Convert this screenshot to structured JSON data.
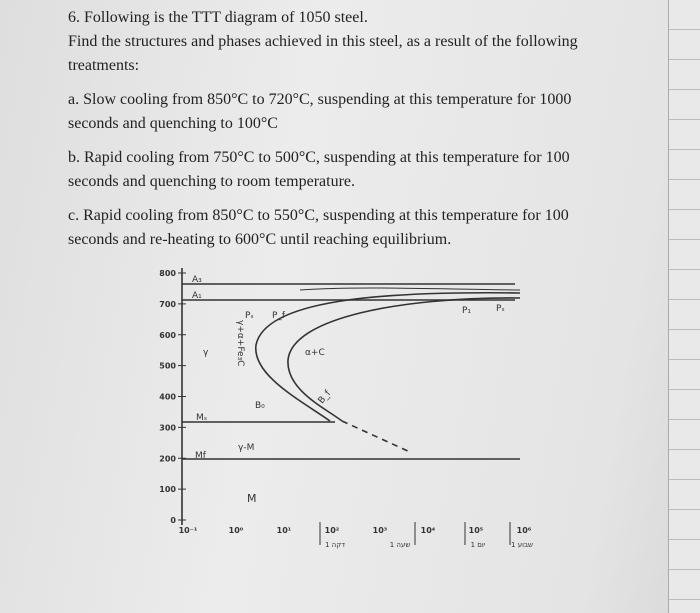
{
  "question": {
    "title": "6. Following is the TTT diagram of 1050 steel.",
    "intro": "Find the structures and phases achieved in this steel, as a result of the following treatments:",
    "items": [
      "a. Slow cooling from 850°C to 720°C, suspending at this temperature for 1000 seconds and quenching to 100°C",
      "b. Rapid cooling from 750°C to 500°C, suspending at this temperature for 100 seconds and quenching to room temperature.",
      "c. Rapid cooling from 850°C to 550°C, suspending at this temperature for 100 seconds and re-heating to 600°C until reaching equilibrium."
    ]
  },
  "diagram": {
    "y_ticks": [
      800,
      700,
      600,
      500,
      400,
      300,
      200,
      100,
      0
    ],
    "x_ticks": [
      "10⁻¹",
      "10⁰",
      "10¹",
      "10²",
      "10³",
      "10⁴",
      "10⁵",
      "10⁶"
    ],
    "time_marks": [
      "1 דקה",
      "1 שעה",
      "1 יום",
      "1 שבוע"
    ],
    "labels": {
      "a3": "A₃",
      "a1": "A₁",
      "ms": "Mₛ",
      "mf": "Mf",
      "gamma": "γ",
      "gamma_pearlite": "γ+α+Fe₃C",
      "ps": "Pₛ",
      "pf": "P_f",
      "alpha_c": "α+C",
      "bainite": "B₀",
      "bf": "B_f",
      "gamma_m": "γ-M",
      "martensite": "M",
      "p1": "P₁",
      "p2": "Pₛ"
    }
  }
}
